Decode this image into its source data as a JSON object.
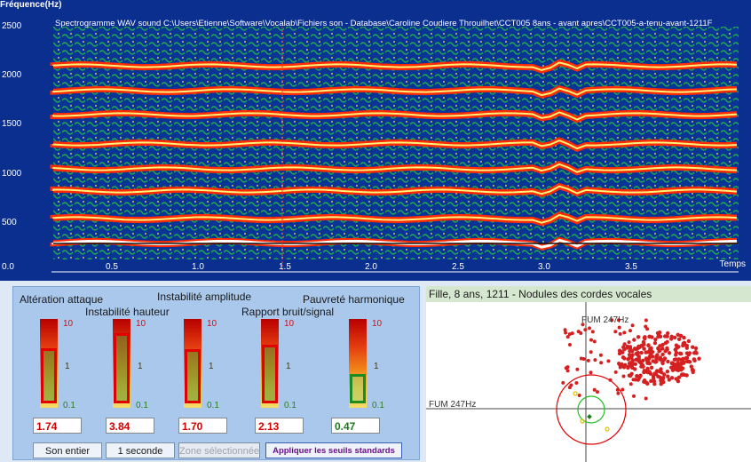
{
  "spectrogram": {
    "title": "Fréquence(Hz)",
    "caption": "Spectrogramme WAV sound  C:\\Users\\Etienne\\Software\\Vocalab\\Fichiers son - Database\\Caroline Coudiere Throuilhet\\CCT005 8ans - avant apres\\CCT005-a-tenu-avant-1211F",
    "y_ticks": [
      "2500",
      "2000",
      "1500",
      "1000",
      "500",
      "0.0"
    ],
    "x_ticks": [
      "0.5",
      "1.0",
      "1.5",
      "2.0",
      "2.5",
      "3.0",
      "3.5"
    ],
    "x_title": "Temps",
    "colors": {
      "background": "#0a2f8f",
      "noise": "#1fbf3a",
      "harmonic": "#ff2a00",
      "core": "#fff27a"
    }
  },
  "panel": {
    "labels": {
      "attaque": "Altération attaque",
      "hauteur": "Instabilité hauteur",
      "amplitude": "Instabilité amplitude",
      "bruit": "Rapport bruit/signal",
      "harmonique": "Pauvreté harmonique"
    },
    "scale": {
      "top": "10",
      "mid": "1",
      "bottom": "0.1"
    },
    "meters": [
      {
        "value": "1.74",
        "level": 0.62,
        "status": "red"
      },
      {
        "value": "3.84",
        "level": 0.79,
        "status": "red"
      },
      {
        "value": "1.70",
        "level": 0.61,
        "status": "red"
      },
      {
        "value": "2.13",
        "level": 0.66,
        "status": "red"
      },
      {
        "value": "0.47",
        "level": 0.33,
        "status": "green"
      }
    ],
    "buttons": {
      "son_entier": "Son entier",
      "une_seconde": "1 seconde",
      "zone": "Zone sélectionnée",
      "appliquer": "Appliquer les seuils standards"
    }
  },
  "scatter": {
    "title": "Fille,  8 ans, 1211 -  Nodules des cordes vocales",
    "fum_top": "FUM 247Hz",
    "fum_left": "FUM 247Hz",
    "colors": {
      "points": "#d42020",
      "outer_circle": "#e00000",
      "inner_circle": "#1fbf1f",
      "yellow": "#e0c000"
    }
  }
}
